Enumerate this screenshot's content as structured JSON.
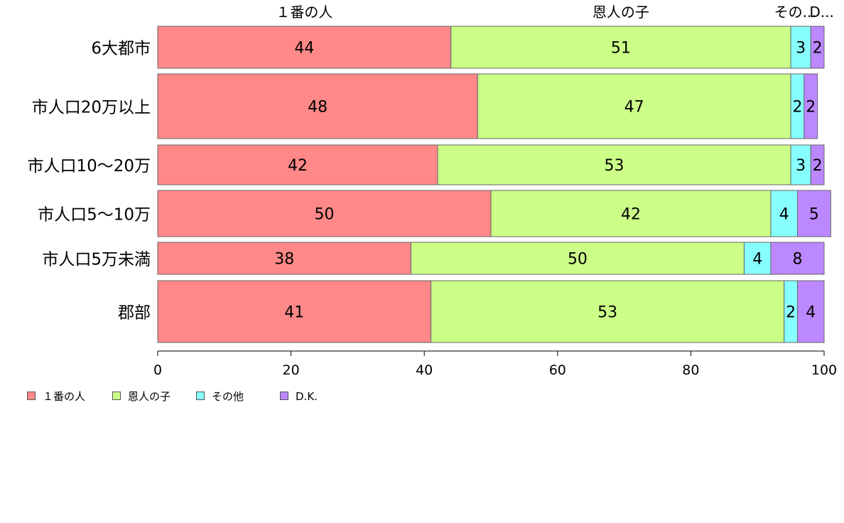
{
  "chart_data": {
    "type": "bar",
    "orientation": "horizontal",
    "stacked": true,
    "categories": [
      "6大都市",
      "市人口20万以上",
      "市人口10～20万",
      "市人口5～10万",
      "市人口5万未満",
      "郡部"
    ],
    "series": [
      {
        "name": "１番の人",
        "color": "#ff8888",
        "values": [
          44,
          48,
          42,
          50,
          38,
          41
        ]
      },
      {
        "name": "恩人の子",
        "color": "#ccff88",
        "values": [
          51,
          47,
          53,
          42,
          50,
          53
        ]
      },
      {
        "name": "その他",
        "color": "#88ffff",
        "values": [
          3,
          2,
          3,
          4,
          4,
          2
        ]
      },
      {
        "name": "D.K.",
        "color": "#bb88ff",
        "values": [
          2,
          2,
          2,
          5,
          8,
          4
        ]
      }
    ],
    "top_labels": [
      "１番の人",
      "恩人の子",
      "その...",
      "D..."
    ],
    "x_ticks": [
      0,
      20,
      40,
      60,
      80,
      100
    ],
    "xlim": [
      0,
      100
    ],
    "grid": false,
    "legend_position": "bottom-left"
  },
  "legend": [
    {
      "label": "１番の人",
      "color": "#ff8888"
    },
    {
      "label": "恩人の子",
      "color": "#ccff88"
    },
    {
      "label": "その他",
      "color": "#88ffff"
    },
    {
      "label": "D.K.",
      "color": "#bb88ff"
    }
  ]
}
